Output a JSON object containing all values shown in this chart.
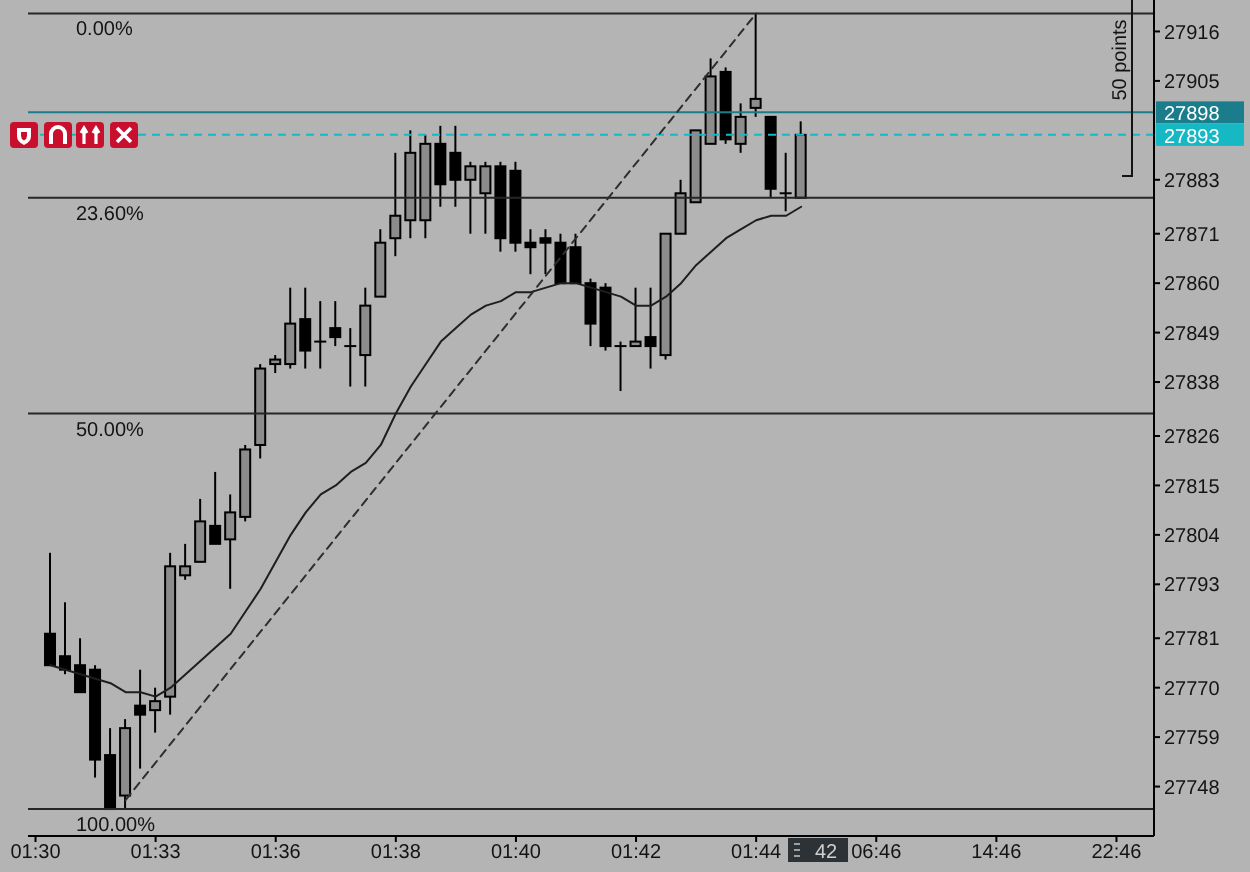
{
  "chart_data": {
    "type": "candlestick",
    "categories": [
      "01:30",
      null,
      null,
      null,
      null,
      null,
      null,
      null,
      "01:33",
      null,
      null,
      null,
      null,
      null,
      null,
      null,
      "01:36",
      null,
      null,
      null,
      null,
      null,
      null,
      null,
      "01:38",
      null,
      null,
      null,
      null,
      null,
      null,
      null,
      "01:40",
      null,
      null,
      null,
      null,
      null,
      null,
      null,
      "01:42",
      null,
      null,
      null,
      null,
      null,
      null,
      null,
      "01:44",
      null,
      null,
      null,
      null,
      null,
      null,
      null,
      "06:46",
      null,
      null,
      null,
      null,
      null,
      null,
      null,
      "14:46",
      null,
      null,
      null,
      null,
      null,
      null,
      null,
      "22:46",
      null,
      null
    ],
    "ohlc": [
      null,
      [
        27782,
        27800,
        27775,
        27775
      ],
      [
        27777,
        27789,
        27773,
        27774
      ],
      [
        27775,
        27781,
        27769,
        27769
      ],
      [
        27774,
        27775,
        27750,
        27754
      ],
      [
        27755,
        27761,
        27743,
        27743
      ],
      [
        27746,
        27763,
        27743,
        27761
      ],
      [
        27766,
        27774,
        27752,
        27764
      ],
      [
        27765,
        27770,
        27760,
        27767
      ],
      [
        27768,
        27800,
        27764,
        27797
      ],
      [
        27795,
        27802,
        27794,
        27797
      ],
      [
        27798,
        27812,
        27798,
        27807
      ],
      [
        27806,
        27818,
        27802,
        27802
      ],
      [
        27803,
        27813,
        27792,
        27809
      ],
      [
        27808,
        27824,
        27807,
        27823
      ],
      [
        27824,
        27842,
        27821,
        27841
      ],
      [
        27842,
        27844,
        27840,
        27843
      ],
      [
        27842,
        27859,
        27841,
        27851
      ],
      [
        27852,
        27859,
        27841,
        27845
      ],
      [
        27847,
        27856,
        27841,
        27847
      ],
      [
        27850,
        27856,
        27846,
        27848
      ],
      [
        27846,
        27850,
        27837,
        27846
      ],
      [
        27844,
        27859,
        27837,
        27855
      ],
      [
        27857,
        27872,
        27857,
        27869
      ],
      [
        27870,
        27889,
        27866,
        27875
      ],
      [
        27874,
        27894,
        27870,
        27889
      ],
      [
        27874,
        27893,
        27870,
        27891
      ],
      [
        27891,
        27895,
        27877,
        27882
      ],
      [
        27889,
        27895,
        27877,
        27883
      ],
      [
        27883,
        27887,
        27871,
        27886
      ],
      [
        27880,
        27887,
        27871,
        27886
      ],
      [
        27886,
        27887,
        27867,
        27870
      ],
      [
        27885,
        27887,
        27867,
        27869
      ],
      [
        27869,
        27872,
        27862,
        27868
      ],
      [
        27870,
        27872,
        27862,
        27869
      ],
      [
        27869,
        27871,
        27860,
        27860
      ],
      [
        27868,
        27871,
        27860,
        27860
      ],
      [
        27860,
        27861,
        27846,
        27851
      ],
      [
        27859,
        27860,
        27845,
        27846
      ],
      [
        27846,
        27847,
        27836,
        27846
      ],
      [
        27846,
        27859,
        27846,
        27847
      ],
      [
        27848,
        27859,
        27841,
        27846
      ],
      [
        27844,
        27871,
        27843,
        27871
      ],
      [
        27871,
        27883,
        27871,
        27880
      ],
      [
        27878,
        27894,
        27878,
        27894
      ],
      [
        27891,
        27910,
        27891,
        27906
      ],
      [
        27907,
        27908,
        27891,
        27892
      ],
      [
        27891,
        27900,
        27889,
        27897
      ],
      [
        27899,
        27920,
        27897,
        27901
      ],
      [
        27897,
        27897,
        27879,
        27881
      ],
      [
        27880,
        27889,
        27876,
        27880
      ],
      [
        27879,
        27896,
        27879,
        27893
      ],
      null,
      null,
      null,
      null,
      null,
      null,
      null,
      null,
      null,
      null,
      null,
      null,
      null,
      null,
      null,
      null,
      null,
      null,
      null,
      null,
      null,
      null,
      null
    ],
    "colors": [
      null,
      "#000000",
      "#000000",
      "#000000",
      "#000000",
      "#000000",
      "#8c8c8c",
      "#000000",
      "#8c8c8c",
      "#8c8c8c",
      "#8c8c8c",
      "#8c8c8c",
      "#000000",
      "#8c8c8c",
      "#8c8c8c",
      "#8c8c8c",
      "#8c8c8c",
      "#8c8c8c",
      "#000000",
      "#000000",
      "#000000",
      "#000000",
      "#8c8c8c",
      "#8c8c8c",
      "#8c8c8c",
      "#8c8c8c",
      "#8c8c8c",
      "#000000",
      "#000000",
      "#8c8c8c",
      "#8c8c8c",
      "#000000",
      "#000000",
      "#000000",
      "#000000",
      "#000000",
      "#000000",
      "#000000",
      "#000000",
      "#000000",
      "#8c8c8c",
      "#000000",
      "#8c8c8c",
      "#8c8c8c",
      "#8c8c8c",
      "#8c8c8c",
      "#000000",
      "#8c8c8c",
      "#8c8c8c",
      "#000000",
      "#000000",
      "#8c8c8c",
      null,
      null,
      null,
      null,
      null,
      null,
      null,
      null,
      null,
      null,
      null,
      null,
      null,
      null,
      null,
      null,
      null,
      null,
      null,
      null,
      null,
      null,
      null
    ],
    "series": [
      {
        "type": "line",
        "color": "#1e1e1e",
        "values": [
          null,
          27775,
          27774,
          27773,
          27772,
          27771,
          27769,
          27769,
          27768,
          27770,
          27773,
          27776,
          27779,
          27782,
          27787,
          27792,
          27798,
          27804,
          27809,
          27813,
          27815,
          27818,
          27820,
          27824,
          27831,
          27837,
          27842,
          27847,
          27850,
          27853,
          27855,
          27856,
          27858,
          27858,
          27859,
          27860,
          27860,
          27859,
          27858,
          27857,
          27855,
          27855,
          27857,
          27860,
          27864,
          27867,
          27870,
          27872,
          27874,
          27875,
          27875,
          27877,
          null,
          null,
          null,
          null,
          null,
          null,
          null,
          null,
          null,
          null,
          null,
          null,
          null,
          null,
          null,
          null,
          null,
          null,
          null,
          null,
          null,
          null,
          null
        ]
      },
      {
        "type": "line",
        "color": "#2e2e2e",
        "line_style": "dashed",
        "values": [
          null,
          null,
          null,
          null,
          null,
          null,
          27745,
          null,
          null,
          null,
          null,
          null,
          null,
          null,
          null,
          null,
          null,
          null,
          null,
          null,
          null,
          null,
          null,
          null,
          null,
          null,
          null,
          null,
          null,
          null,
          null,
          null,
          null,
          null,
          null,
          null,
          null,
          null,
          null,
          null,
          null,
          null,
          null,
          null,
          null,
          null,
          null,
          null,
          27920,
          null,
          null,
          null,
          null,
          null,
          null,
          null,
          null,
          null,
          null,
          null,
          null,
          null,
          null,
          null,
          null,
          null,
          null,
          null,
          null,
          null,
          null,
          null,
          null,
          null,
          null
        ]
      }
    ],
    "ylim": [
      27737,
      27923
    ],
    "yticks": [
      27748,
      27759,
      27770,
      27781,
      27793,
      27804,
      27815,
      27826,
      27838,
      27849,
      27860,
      27871,
      27883,
      27905,
      27916
    ],
    "ref_lines": [
      {
        "axis": "y",
        "value": 27920
      },
      {
        "axis": "y",
        "value": 27879
      },
      {
        "axis": "y",
        "value": 27831
      },
      {
        "axis": "y",
        "value": 27743
      },
      {
        "axis": "y",
        "value": 27898,
        "label": "27898",
        "color": "#1b7d8c"
      },
      {
        "axis": "y",
        "value": 27893,
        "label": "27893",
        "color": "#16b8c4",
        "line_style": "dashed"
      }
    ],
    "annotations": [
      "50 points",
      "42",
      {
        "text": "0.00%",
        "y": 27920
      },
      {
        "text": "23.60%",
        "y": 27879
      },
      {
        "text": "50.00%",
        "y": 27831
      },
      {
        "text": "100.00%",
        "y": 27743
      }
    ]
  }
}
